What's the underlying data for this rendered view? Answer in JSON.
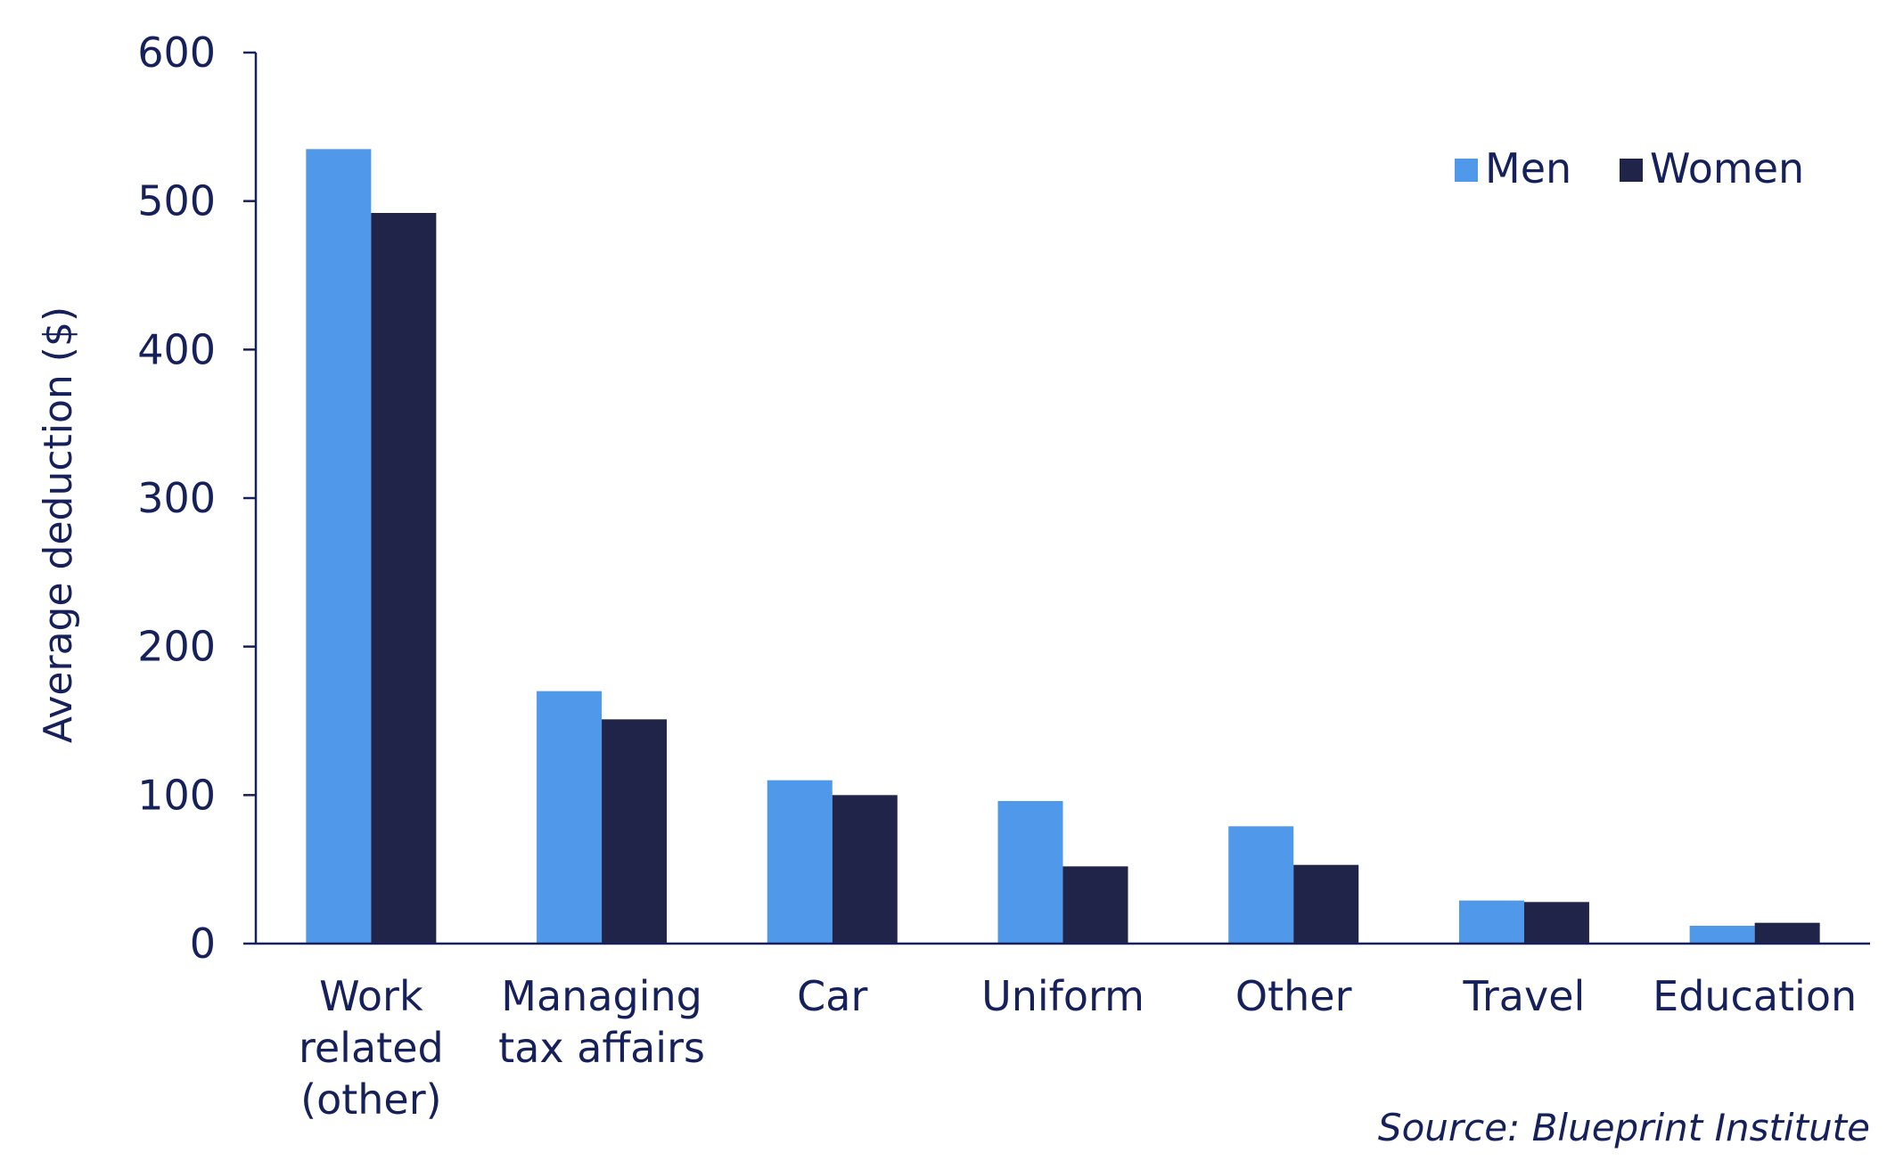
{
  "chart_data": {
    "type": "bar",
    "title": "",
    "xlabel": "",
    "ylabel": "Average deduction ($)",
    "ylim": [
      0,
      600
    ],
    "yticks": [
      0,
      100,
      200,
      300,
      400,
      500,
      600
    ],
    "grid": false,
    "legend_position": "top-right",
    "categories": [
      [
        "Work",
        "related",
        "(other)"
      ],
      [
        "Managing",
        "tax affairs"
      ],
      [
        "Car"
      ],
      [
        "Uniform"
      ],
      [
        "Other"
      ],
      [
        "Travel"
      ],
      [
        "Education"
      ]
    ],
    "series": [
      {
        "name": "Men",
        "color": "#4f98ea",
        "values": [
          535,
          170,
          110,
          96,
          79,
          29,
          12
        ]
      },
      {
        "name": "Women",
        "color": "#1f2448",
        "values": [
          492,
          151,
          100,
          52,
          53,
          28,
          14
        ]
      }
    ],
    "text_color": "#16205a",
    "axis_color": "#16205a",
    "source": "Source: Blueprint Institute"
  }
}
